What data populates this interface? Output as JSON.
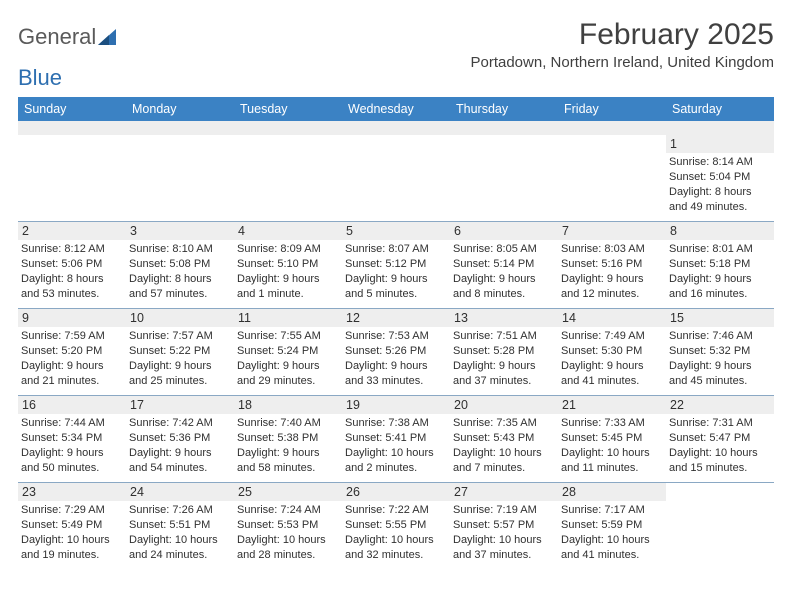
{
  "logo": {
    "word1": "General",
    "word2": "Blue"
  },
  "title": "February 2025",
  "location": "Portadown, Northern Ireland, United Kingdom",
  "colors": {
    "header_bg": "#3b82c4",
    "header_text": "#ffffff",
    "subhead_bg": "#eeeeee",
    "text": "#303030",
    "rule": "#8aa8c4",
    "logo_gray": "#5a5a5a",
    "logo_blue": "#2e6fb0"
  },
  "dayNames": [
    "Sunday",
    "Monday",
    "Tuesday",
    "Wednesday",
    "Thursday",
    "Friday",
    "Saturday"
  ],
  "weeks": [
    [
      {
        "n": "",
        "sr": "",
        "ss": "",
        "dl": ""
      },
      {
        "n": "",
        "sr": "",
        "ss": "",
        "dl": ""
      },
      {
        "n": "",
        "sr": "",
        "ss": "",
        "dl": ""
      },
      {
        "n": "",
        "sr": "",
        "ss": "",
        "dl": ""
      },
      {
        "n": "",
        "sr": "",
        "ss": "",
        "dl": ""
      },
      {
        "n": "",
        "sr": "",
        "ss": "",
        "dl": ""
      },
      {
        "n": "1",
        "sr": "Sunrise: 8:14 AM",
        "ss": "Sunset: 5:04 PM",
        "dl": "Daylight: 8 hours and 49 minutes."
      }
    ],
    [
      {
        "n": "2",
        "sr": "Sunrise: 8:12 AM",
        "ss": "Sunset: 5:06 PM",
        "dl": "Daylight: 8 hours and 53 minutes."
      },
      {
        "n": "3",
        "sr": "Sunrise: 8:10 AM",
        "ss": "Sunset: 5:08 PM",
        "dl": "Daylight: 8 hours and 57 minutes."
      },
      {
        "n": "4",
        "sr": "Sunrise: 8:09 AM",
        "ss": "Sunset: 5:10 PM",
        "dl": "Daylight: 9 hours and 1 minute."
      },
      {
        "n": "5",
        "sr": "Sunrise: 8:07 AM",
        "ss": "Sunset: 5:12 PM",
        "dl": "Daylight: 9 hours and 5 minutes."
      },
      {
        "n": "6",
        "sr": "Sunrise: 8:05 AM",
        "ss": "Sunset: 5:14 PM",
        "dl": "Daylight: 9 hours and 8 minutes."
      },
      {
        "n": "7",
        "sr": "Sunrise: 8:03 AM",
        "ss": "Sunset: 5:16 PM",
        "dl": "Daylight: 9 hours and 12 minutes."
      },
      {
        "n": "8",
        "sr": "Sunrise: 8:01 AM",
        "ss": "Sunset: 5:18 PM",
        "dl": "Daylight: 9 hours and 16 minutes."
      }
    ],
    [
      {
        "n": "9",
        "sr": "Sunrise: 7:59 AM",
        "ss": "Sunset: 5:20 PM",
        "dl": "Daylight: 9 hours and 21 minutes."
      },
      {
        "n": "10",
        "sr": "Sunrise: 7:57 AM",
        "ss": "Sunset: 5:22 PM",
        "dl": "Daylight: 9 hours and 25 minutes."
      },
      {
        "n": "11",
        "sr": "Sunrise: 7:55 AM",
        "ss": "Sunset: 5:24 PM",
        "dl": "Daylight: 9 hours and 29 minutes."
      },
      {
        "n": "12",
        "sr": "Sunrise: 7:53 AM",
        "ss": "Sunset: 5:26 PM",
        "dl": "Daylight: 9 hours and 33 minutes."
      },
      {
        "n": "13",
        "sr": "Sunrise: 7:51 AM",
        "ss": "Sunset: 5:28 PM",
        "dl": "Daylight: 9 hours and 37 minutes."
      },
      {
        "n": "14",
        "sr": "Sunrise: 7:49 AM",
        "ss": "Sunset: 5:30 PM",
        "dl": "Daylight: 9 hours and 41 minutes."
      },
      {
        "n": "15",
        "sr": "Sunrise: 7:46 AM",
        "ss": "Sunset: 5:32 PM",
        "dl": "Daylight: 9 hours and 45 minutes."
      }
    ],
    [
      {
        "n": "16",
        "sr": "Sunrise: 7:44 AM",
        "ss": "Sunset: 5:34 PM",
        "dl": "Daylight: 9 hours and 50 minutes."
      },
      {
        "n": "17",
        "sr": "Sunrise: 7:42 AM",
        "ss": "Sunset: 5:36 PM",
        "dl": "Daylight: 9 hours and 54 minutes."
      },
      {
        "n": "18",
        "sr": "Sunrise: 7:40 AM",
        "ss": "Sunset: 5:38 PM",
        "dl": "Daylight: 9 hours and 58 minutes."
      },
      {
        "n": "19",
        "sr": "Sunrise: 7:38 AM",
        "ss": "Sunset: 5:41 PM",
        "dl": "Daylight: 10 hours and 2 minutes."
      },
      {
        "n": "20",
        "sr": "Sunrise: 7:35 AM",
        "ss": "Sunset: 5:43 PM",
        "dl": "Daylight: 10 hours and 7 minutes."
      },
      {
        "n": "21",
        "sr": "Sunrise: 7:33 AM",
        "ss": "Sunset: 5:45 PM",
        "dl": "Daylight: 10 hours and 11 minutes."
      },
      {
        "n": "22",
        "sr": "Sunrise: 7:31 AM",
        "ss": "Sunset: 5:47 PM",
        "dl": "Daylight: 10 hours and 15 minutes."
      }
    ],
    [
      {
        "n": "23",
        "sr": "Sunrise: 7:29 AM",
        "ss": "Sunset: 5:49 PM",
        "dl": "Daylight: 10 hours and 19 minutes."
      },
      {
        "n": "24",
        "sr": "Sunrise: 7:26 AM",
        "ss": "Sunset: 5:51 PM",
        "dl": "Daylight: 10 hours and 24 minutes."
      },
      {
        "n": "25",
        "sr": "Sunrise: 7:24 AM",
        "ss": "Sunset: 5:53 PM",
        "dl": "Daylight: 10 hours and 28 minutes."
      },
      {
        "n": "26",
        "sr": "Sunrise: 7:22 AM",
        "ss": "Sunset: 5:55 PM",
        "dl": "Daylight: 10 hours and 32 minutes."
      },
      {
        "n": "27",
        "sr": "Sunrise: 7:19 AM",
        "ss": "Sunset: 5:57 PM",
        "dl": "Daylight: 10 hours and 37 minutes."
      },
      {
        "n": "28",
        "sr": "Sunrise: 7:17 AM",
        "ss": "Sunset: 5:59 PM",
        "dl": "Daylight: 10 hours and 41 minutes."
      },
      {
        "n": "",
        "sr": "",
        "ss": "",
        "dl": ""
      }
    ]
  ]
}
